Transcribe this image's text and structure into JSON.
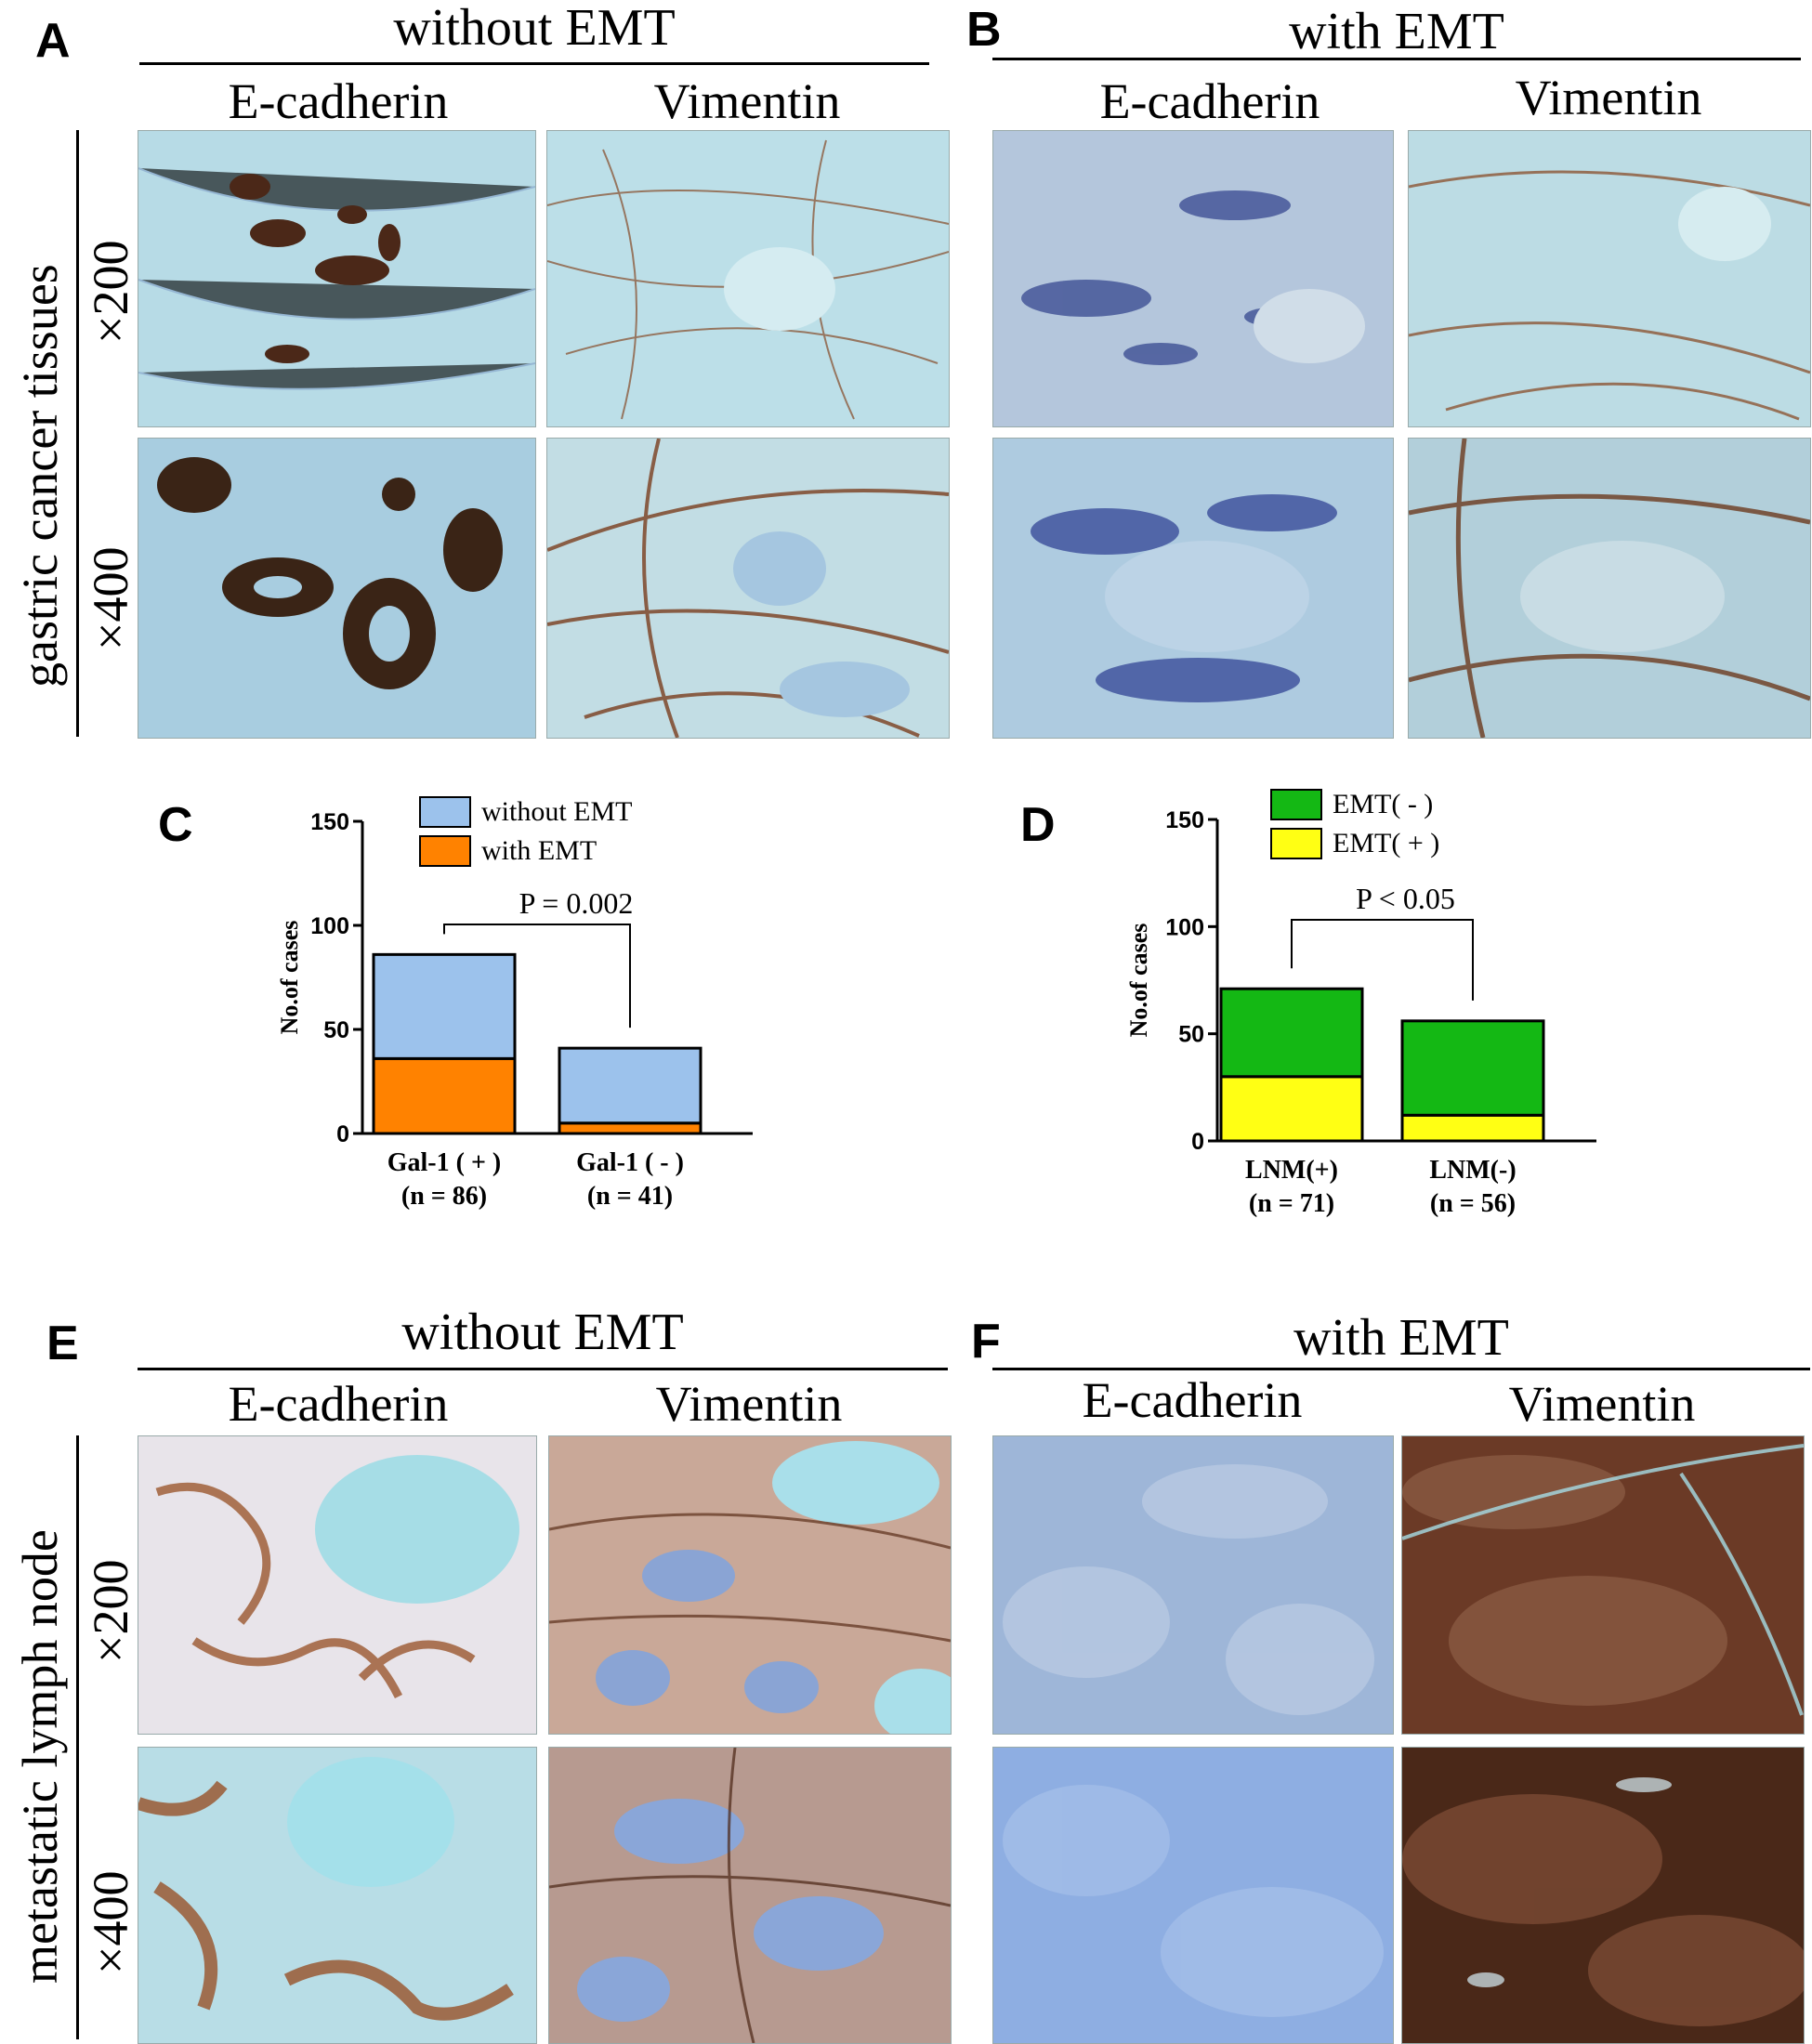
{
  "panels": {
    "A": {
      "letter": "A",
      "header": "without EMT",
      "col1": "E-cadherin",
      "col2": "Vimentin"
    },
    "B": {
      "letter": "B",
      "header": "with EMT",
      "col1": "E-cadherin",
      "col2": "Vimentin"
    },
    "E": {
      "letter": "E",
      "header": "without EMT",
      "col1": "E-cadherin",
      "col2": "Vimentin"
    },
    "F": {
      "letter": "F",
      "header": "with EMT",
      "col1": "E-cadherin",
      "col2": "Vimentin"
    }
  },
  "rows": {
    "top_label": "gastric cancer tissues",
    "bottom_label": "metastatic lymph node",
    "mag1": "×200",
    "mag2": "×400"
  },
  "colors": {
    "tissue_bg": "#a9d3e4",
    "hematoxylin": "#2c3e8c",
    "dab_brown": "#6b3a1e",
    "without_emt": "#9cc2ec",
    "with_emt": "#ff8200",
    "emt_neg": "#14b814",
    "emt_pos": "#ffff14"
  },
  "chart_data": [
    {
      "panel": "C",
      "letter": "C",
      "type": "bar",
      "stacked": true,
      "categories": [
        "Gal-1 ( + )",
        "Gal-1 ( - )"
      ],
      "category_sublabels": [
        "(n = 86)",
        "(n = 41)"
      ],
      "series": [
        {
          "name": "with EMT",
          "color": "#ff8200",
          "values": [
            36,
            5
          ]
        },
        {
          "name": "without EMT",
          "color": "#9cc2ec",
          "values": [
            50,
            36
          ]
        }
      ],
      "legend_order": [
        "without EMT",
        "with EMT"
      ],
      "ylabel": "No.of cases",
      "ylim": [
        0,
        150
      ],
      "yticks": [
        0,
        50,
        100,
        150
      ],
      "annotation": "P = 0.002"
    },
    {
      "panel": "D",
      "letter": "D",
      "type": "bar",
      "stacked": true,
      "categories": [
        "LNM(+)",
        "LNM(-)"
      ],
      "category_sublabels": [
        "(n = 71)",
        "(n = 56)"
      ],
      "series": [
        {
          "name": "EMT( + )",
          "color": "#ffff14",
          "values": [
            30,
            12
          ]
        },
        {
          "name": "EMT( - )",
          "color": "#14b814",
          "values": [
            41,
            44
          ]
        }
      ],
      "legend_order": [
        "EMT( - )",
        "EMT( + )"
      ],
      "ylabel": "No.of cases",
      "ylim": [
        0,
        150
      ],
      "yticks": [
        0,
        50,
        100,
        150
      ],
      "annotation": "P < 0.05"
    }
  ]
}
